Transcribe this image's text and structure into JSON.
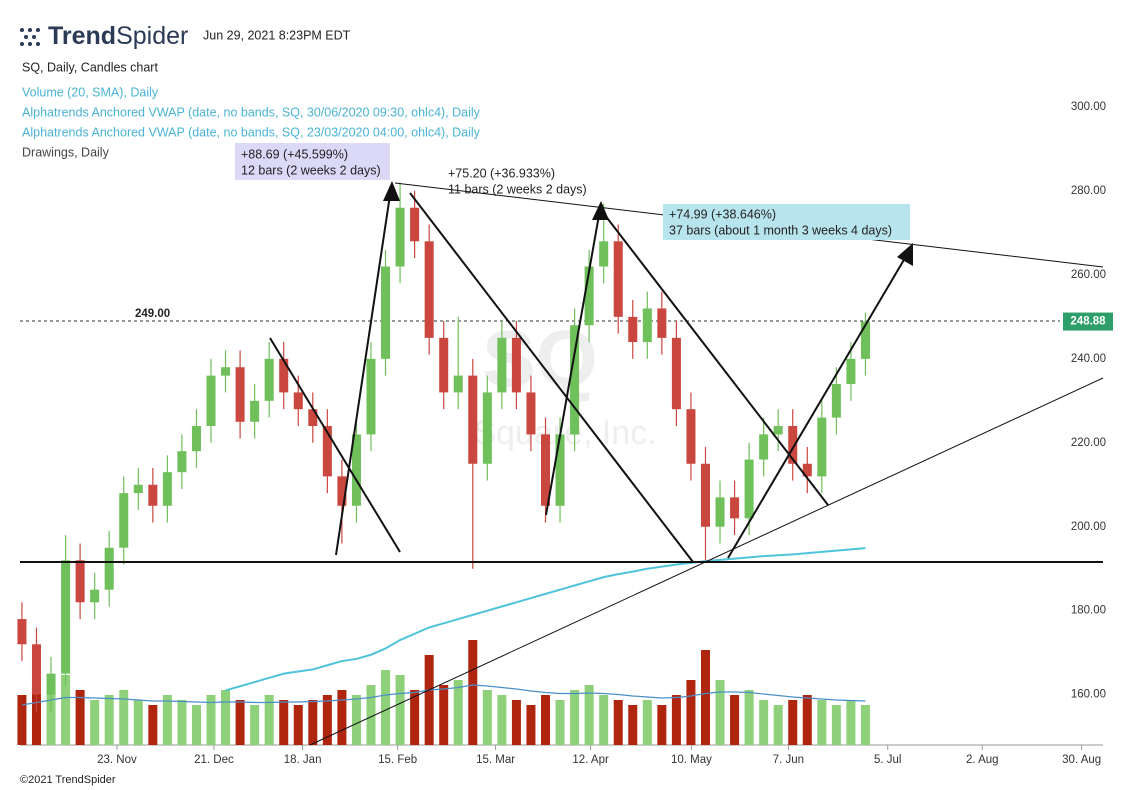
{
  "header": {
    "logo_bold": "Trend",
    "logo_light": "Spider",
    "timestamp": "Jun 29, 2021 8:23PM EDT",
    "footer": "©2021 TrendSpider"
  },
  "chart_data": {
    "type": "candlestick",
    "title": "SQ, Daily, Candles chart",
    "legend": [
      "Volume (20, SMA), Daily",
      "Alphatrends Anchored VWAP (date, no bands, SQ, 30/06/2020 09:30, ohlc4), Daily",
      "Alphatrends Anchored VWAP (date, no bands, SQ, 23/03/2020 04:00, ohlc4), Daily",
      "Drawings, Daily"
    ],
    "watermark": {
      "symbol": "SQ",
      "name": "Square, Inc."
    },
    "x": [
      0,
      3,
      6,
      9,
      12,
      15,
      18,
      21,
      24,
      27,
      30,
      33,
      36,
      39,
      42,
      45,
      48,
      51,
      54,
      57,
      60,
      63,
      66,
      69,
      72,
      75,
      78,
      81,
      84,
      87,
      90,
      93,
      96,
      99,
      102,
      105,
      108,
      111,
      114,
      117,
      120,
      123,
      126,
      129,
      132,
      135,
      138,
      141,
      144,
      147,
      150,
      153,
      156,
      159,
      162,
      165,
      168,
      171,
      174
    ],
    "open": [
      178,
      172,
      160,
      165,
      192,
      182,
      185,
      195,
      208,
      210,
      205,
      213,
      218,
      224,
      236,
      238,
      225,
      230,
      240,
      232,
      228,
      224,
      212,
      205,
      222,
      240,
      262,
      276,
      268,
      245,
      232,
      236,
      215,
      232,
      245,
      232,
      222,
      205,
      222,
      248,
      262,
      268,
      250,
      244,
      252,
      245,
      228,
      215,
      200,
      207,
      202,
      216,
      222,
      224,
      215,
      212,
      226,
      234,
      240
    ],
    "high": [
      182,
      176,
      169,
      198,
      196,
      189,
      199,
      212,
      214,
      214,
      217,
      222,
      228,
      240,
      242,
      242,
      234,
      244,
      244,
      236,
      232,
      228,
      216,
      226,
      244,
      266,
      282,
      280,
      272,
      249,
      250,
      240,
      236,
      249,
      249,
      236,
      226,
      226,
      252,
      266,
      277,
      272,
      254,
      256,
      256,
      249,
      232,
      219,
      211,
      211,
      220,
      226,
      228,
      228,
      219,
      230,
      238,
      244,
      251
    ],
    "low": [
      168,
      156,
      156,
      162,
      178,
      178,
      181,
      191,
      204,
      201,
      201,
      209,
      214,
      220,
      232,
      221,
      221,
      226,
      228,
      224,
      220,
      208,
      196,
      201,
      218,
      236,
      258,
      264,
      241,
      228,
      228,
      190,
      211,
      228,
      228,
      218,
      201,
      201,
      218,
      244,
      258,
      246,
      240,
      240,
      241,
      224,
      211,
      192,
      196,
      198,
      198,
      212,
      218,
      211,
      208,
      208,
      222,
      230,
      236
    ],
    "close": [
      172,
      160,
      165,
      192,
      182,
      185,
      195,
      208,
      210,
      205,
      213,
      218,
      224,
      236,
      238,
      225,
      230,
      240,
      232,
      228,
      224,
      212,
      205,
      222,
      240,
      262,
      276,
      268,
      245,
      232,
      236,
      215,
      232,
      245,
      232,
      222,
      205,
      222,
      248,
      262,
      268,
      250,
      244,
      252,
      245,
      228,
      215,
      200,
      207,
      202,
      216,
      222,
      224,
      215,
      212,
      226,
      234,
      240,
      248.88
    ],
    "volume": [
      10,
      12,
      13,
      14,
      11,
      9,
      10,
      11,
      9,
      8,
      10,
      9,
      8,
      10,
      11,
      9,
      8,
      10,
      9,
      8,
      9,
      10,
      11,
      10,
      12,
      15,
      14,
      11,
      18,
      12,
      13,
      21,
      11,
      10,
      9,
      8,
      10,
      9,
      11,
      12,
      10,
      9,
      8,
      9,
      8,
      10,
      13,
      19,
      13,
      10,
      11,
      9,
      8,
      9,
      10,
      9,
      8,
      9,
      8
    ],
    "volume_sma": [
      8,
      8.5,
      9,
      9.5,
      9.5,
      9.4,
      9.3,
      9.2,
      9,
      8.8,
      8.8,
      8.7,
      8.6,
      8.5,
      8.6,
      8.6,
      8.5,
      8.5,
      8.6,
      8.6,
      8.7,
      8.8,
      9,
      9.2,
      9.5,
      10,
      10.3,
      10.5,
      11,
      11.2,
      11.5,
      12,
      11.8,
      11.5,
      11.2,
      10.8,
      10.5,
      10.3,
      10.3,
      10.4,
      10.3,
      10.1,
      9.8,
      9.6,
      9.4,
      9.5,
      9.8,
      10.3,
      10.6,
      10.6,
      10.5,
      10.2,
      9.9,
      9.6,
      9.4,
      9.2,
      9,
      8.9,
      8.8
    ],
    "vlim": [
      0,
      30
    ],
    "vwap": [
      null,
      null,
      null,
      null,
      null,
      null,
      null,
      null,
      null,
      null,
      null,
      null,
      null,
      null,
      161,
      162,
      163,
      164,
      165,
      165.5,
      166,
      167,
      168,
      168.5,
      169.5,
      171,
      173,
      174.5,
      176,
      177,
      178,
      179,
      180,
      181,
      182,
      183,
      184,
      185,
      186,
      187,
      188,
      188.7,
      189.3,
      190,
      190.5,
      191,
      191.4,
      191.8,
      192.1,
      192.4,
      192.7,
      193,
      193.2,
      193.4,
      193.7,
      194,
      194.3,
      194.6,
      194.9
    ],
    "vwap_color": "#4fc3d9",
    "sma_color": "#4a8fc8",
    "up_color": "#6fbf5b",
    "down_color": "#c9473f",
    "vol_up_color": "#8fd07a",
    "vol_down_color": "#b0250e",
    "xlim": [
      -0.4,
      223
    ],
    "xticks": [
      {
        "value": 19.6,
        "label": "23. Nov"
      },
      {
        "value": 39.6,
        "label": "21. Dec"
      },
      {
        "value": 57.9,
        "label": "18. Jan"
      },
      {
        "value": 77.5,
        "label": "15. Feb"
      },
      {
        "value": 97.7,
        "label": "15. Mar"
      },
      {
        "value": 117.3,
        "label": "12. Apr"
      },
      {
        "value": 138.1,
        "label": "10. May"
      },
      {
        "value": 158.1,
        "label": "7. Jun"
      },
      {
        "value": 178.6,
        "label": "5. Jul"
      },
      {
        "value": 198.1,
        "label": "2. Aug"
      },
      {
        "value": 218.6,
        "label": "30. Aug"
      }
    ],
    "ylim": [
      148,
      305
    ],
    "yticks": [
      {
        "value": 160,
        "label": "160.00"
      },
      {
        "value": 180,
        "label": "180.00"
      },
      {
        "value": 200,
        "label": "200.00"
      },
      {
        "value": 220,
        "label": "220.00"
      },
      {
        "value": 240,
        "label": "240.00"
      },
      {
        "value": 260,
        "label": "260.00"
      },
      {
        "value": 280,
        "label": "280.00"
      },
      {
        "value": 300,
        "label": "300.00"
      }
    ],
    "last_price": 248.88,
    "level": {
      "value": 249,
      "label": "249.00"
    },
    "annotations": [
      {
        "line1": "+88.69 (+45.599%)",
        "line2": "12 bars (2 weeks 2 days)"
      },
      {
        "line1": "+75.20 (+36.933%)",
        "line2": "11 bars (2 weeks 2 days)"
      },
      {
        "line1": "+74.99 (+38.646%)",
        "line2": "37 bars (about 1 month 3 weeks 4 days)"
      }
    ]
  }
}
